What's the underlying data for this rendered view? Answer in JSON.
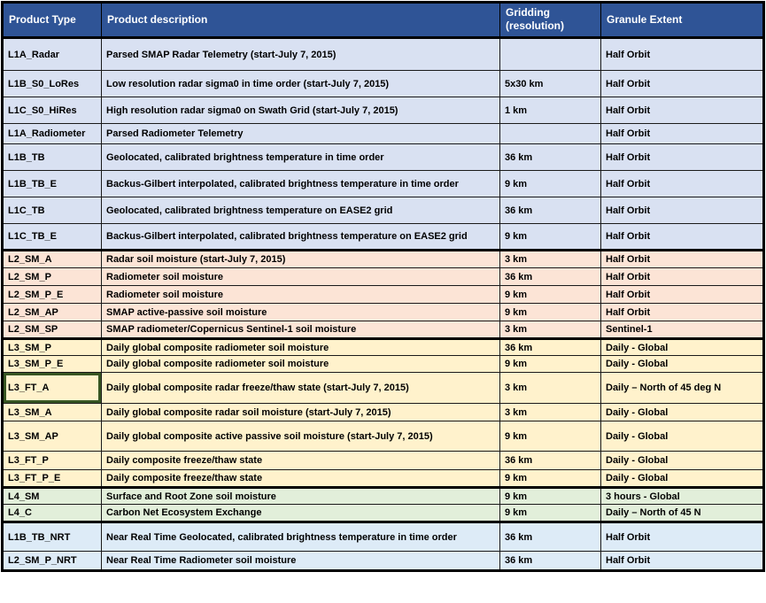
{
  "table": {
    "columns": {
      "product_type": "Product Type",
      "product_description": "Product description",
      "gridding": "Gridding\n(resolution)",
      "granule_extent": "Granule Extent"
    },
    "rows": [
      {
        "type": "L1A_Radar",
        "description": "Parsed SMAP Radar Telemetry (start-July 7, 2015)",
        "gridding": "",
        "extent": "Half Orbit",
        "group": "l1",
        "selected": false
      },
      {
        "type": "L1B_S0_LoRes",
        "description": "Low resolution radar sigma0 in time order (start-July 7, 2015)",
        "gridding": "5x30 km",
        "extent": "Half Orbit",
        "group": "l1",
        "selected": false
      },
      {
        "type": "L1C_S0_HiRes",
        "description": "High resolution radar sigma0 on Swath Grid (start-July 7, 2015)",
        "gridding": "1 km",
        "extent": "Half Orbit",
        "group": "l1",
        "selected": false
      },
      {
        "type": "L1A_Radiometer",
        "description": "Parsed Radiometer Telemetry",
        "gridding": "",
        "extent": "Half Orbit",
        "group": "l1",
        "selected": false
      },
      {
        "type": "L1B_TB",
        "description": "Geolocated, calibrated brightness temperature in time order",
        "gridding": "36 km",
        "extent": "Half Orbit",
        "group": "l1",
        "selected": false
      },
      {
        "type": "L1B_TB_E",
        "description": "Backus-Gilbert interpolated, calibrated brightness temperature in time order",
        "gridding": "9 km",
        "extent": "Half Orbit",
        "group": "l1",
        "selected": false
      },
      {
        "type": "L1C_TB",
        "description": "Geolocated, calibrated brightness temperature on EASE2 grid",
        "gridding": "36 km",
        "extent": "Half Orbit",
        "group": "l1",
        "selected": false
      },
      {
        "type": "L1C_TB_E",
        "description": "Backus-Gilbert interpolated, calibrated brightness temperature on EASE2 grid",
        "gridding": "9 km",
        "extent": "Half Orbit",
        "group": "l1",
        "selected": false
      },
      {
        "type": "L2_SM_A",
        "description": "Radar soil moisture (start-July 7, 2015)",
        "gridding": "3 km",
        "extent": "Half Orbit",
        "group": "l2",
        "selected": false
      },
      {
        "type": "L2_SM_P",
        "description": "Radiometer soil moisture",
        "gridding": "36 km",
        "extent": "Half Orbit",
        "group": "l2",
        "selected": false
      },
      {
        "type": "L2_SM_P_E",
        "description": "Radiometer soil moisture",
        "gridding": "9 km",
        "extent": "Half Orbit",
        "group": "l2",
        "selected": false
      },
      {
        "type": "L2_SM_AP",
        "description": "SMAP active-passive soil moisture",
        "gridding": "9 km",
        "extent": "Half Orbit",
        "group": "l2",
        "selected": false
      },
      {
        "type": "L2_SM_SP",
        "description": "SMAP radiometer/Copernicus Sentinel-1 soil moisture",
        "gridding": "3 km",
        "extent": "Sentinel-1",
        "group": "l2",
        "selected": false
      },
      {
        "type": "L3_SM_P",
        "description": "Daily global composite radiometer soil moisture",
        "gridding": "36 km",
        "extent": "Daily - Global",
        "group": "l3",
        "selected": false
      },
      {
        "type": "L3_SM_P_E",
        "description": "Daily global composite radiometer soil moisture",
        "gridding": "9 km",
        "extent": "Daily - Global",
        "group": "l3",
        "selected": false
      },
      {
        "type": "L3_FT_A",
        "description": "Daily global composite radar freeze/thaw state (start-July 7, 2015)",
        "gridding": "3 km",
        "extent": "Daily – North of 45 deg N",
        "group": "l3",
        "selected": true
      },
      {
        "type": "L3_SM_A",
        "description": "Daily global composite radar soil moisture (start-July 7, 2015)",
        "gridding": "3 km",
        "extent": "Daily - Global",
        "group": "l3",
        "selected": false
      },
      {
        "type": "L3_SM_AP",
        "description": "Daily global composite active passive soil moisture (start-July 7, 2015)",
        "gridding": "9 km",
        "extent": "Daily - Global",
        "group": "l3",
        "selected": false
      },
      {
        "type": "L3_FT_P",
        "description": "Daily composite freeze/thaw state",
        "gridding": "36 km",
        "extent": "Daily - Global",
        "group": "l3",
        "selected": false
      },
      {
        "type": "L3_FT_P_E",
        "description": "Daily composite freeze/thaw state",
        "gridding": "9 km",
        "extent": "Daily - Global",
        "group": "l3",
        "selected": false
      },
      {
        "type": "L4_SM",
        "description": "Surface and Root Zone soil moisture",
        "gridding": "9 km",
        "extent": "3 hours - Global",
        "group": "l4",
        "selected": false
      },
      {
        "type": "L4_C",
        "description": "Carbon Net Ecosystem Exchange",
        "gridding": "9 km",
        "extent": "Daily – North of 45 N",
        "group": "l4",
        "selected": false
      },
      {
        "type": "L1B_TB_NRT",
        "description": "Near Real Time Geolocated, calibrated brightness temperature in time order",
        "gridding": "36 km",
        "extent": "Half Orbit",
        "group": "nrt",
        "selected": false
      },
      {
        "type": "L2_SM_P_NRT",
        "description": "Near Real Time Radiometer soil moisture",
        "gridding": "36 km",
        "extent": "Half Orbit",
        "group": "nrt",
        "selected": false
      }
    ]
  },
  "colors": {
    "header_bg": "#2F5496",
    "header_text": "#FFFFFF",
    "group_l1": "#D9E1F2",
    "group_l2": "#FCE4D6",
    "group_l3": "#FFF2CC",
    "group_l4": "#E2EFDA",
    "group_nrt": "#DDEBF7",
    "selection_border": "#375623"
  }
}
